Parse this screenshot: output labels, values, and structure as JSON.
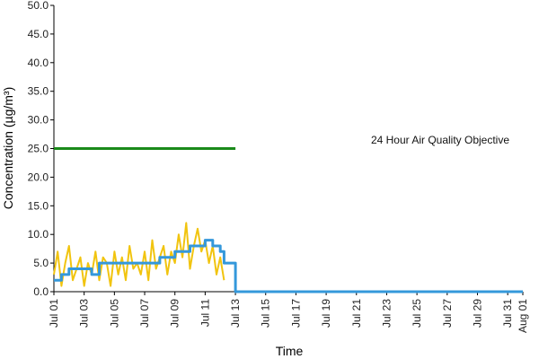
{
  "chart_data": {
    "type": "line",
    "title": "",
    "xlabel": "Time",
    "ylabel": "Concentration (µg/m³)",
    "annotation": "24 Hour Air Quality Objective",
    "ylim": [
      0,
      50
    ],
    "xlim": [
      "2012-07-01",
      "2012-08-01"
    ],
    "y_ticks": [
      "0.0",
      "5.0",
      "10.0",
      "15.0",
      "20.0",
      "25.0",
      "30.0",
      "35.0",
      "40.0",
      "45.0",
      "50.0"
    ],
    "x_ticks": [
      "Jul 01",
      "Jul 03",
      "Jul 05",
      "Jul 07",
      "Jul 09",
      "Jul 11",
      "Jul 13",
      "Jul 15",
      "Jul 17",
      "Jul 19",
      "Jul 21",
      "Jul 23",
      "Jul 25",
      "Jul 27",
      "Jul 29",
      "Jul 31",
      "Aug 01"
    ],
    "x_tick_dates": [
      "2012-07-01",
      "2012-07-03",
      "2012-07-05",
      "2012-07-07",
      "2012-07-09",
      "2012-07-11",
      "2012-07-13",
      "2012-07-15",
      "2012-07-17",
      "2012-07-19",
      "2012-07-21",
      "2012-07-23",
      "2012-07-25",
      "2012-07-27",
      "2012-07-29",
      "2012-07-31",
      "2012-08-01"
    ],
    "grid": false,
    "series": [
      {
        "name": "",
        "color": "#f1c40f",
        "style": "hourly",
        "x": [
          "2012-07-01 00:00",
          "2012-07-01 06:00",
          "2012-07-01 12:00",
          "2012-07-01 18:00",
          "2012-07-02 00:00",
          "2012-07-02 06:00",
          "2012-07-02 12:00",
          "2012-07-02 18:00",
          "2012-07-03 00:00",
          "2012-07-03 06:00",
          "2012-07-03 12:00",
          "2012-07-03 18:00",
          "2012-07-04 00:00",
          "2012-07-04 06:00",
          "2012-07-04 12:00",
          "2012-07-04 18:00",
          "2012-07-05 00:00",
          "2012-07-05 06:00",
          "2012-07-05 12:00",
          "2012-07-05 18:00",
          "2012-07-06 00:00",
          "2012-07-06 06:00",
          "2012-07-06 12:00",
          "2012-07-06 18:00",
          "2012-07-07 00:00",
          "2012-07-07 06:00",
          "2012-07-07 12:00",
          "2012-07-07 18:00",
          "2012-07-08 00:00",
          "2012-07-08 06:00",
          "2012-07-08 12:00",
          "2012-07-08 18:00",
          "2012-07-09 00:00",
          "2012-07-09 06:00",
          "2012-07-09 12:00",
          "2012-07-09 18:00",
          "2012-07-10 00:00",
          "2012-07-10 06:00",
          "2012-07-10 12:00",
          "2012-07-10 18:00",
          "2012-07-11 00:00",
          "2012-07-11 06:00",
          "2012-07-11 12:00",
          "2012-07-11 18:00",
          "2012-07-12 00:00",
          "2012-07-12 06:00"
        ],
        "values": [
          3,
          7,
          1,
          5,
          8,
          2,
          4,
          6,
          1,
          5,
          3,
          7,
          2,
          6,
          5,
          1,
          7,
          3,
          6,
          2,
          8,
          4,
          5,
          3,
          7,
          2,
          9,
          4,
          6,
          8,
          3,
          7,
          5,
          10,
          6,
          12,
          4,
          8,
          11,
          7,
          9,
          5,
          8,
          3,
          6,
          2
        ]
      },
      {
        "name": "",
        "color": "#3498db",
        "style": "step",
        "x": [
          "2012-07-01",
          "2012-07-01 12:00",
          "2012-07-02",
          "2012-07-03",
          "2012-07-03 12:00",
          "2012-07-04",
          "2012-07-05",
          "2012-07-06",
          "2012-07-07",
          "2012-07-08",
          "2012-07-09",
          "2012-07-10",
          "2012-07-11",
          "2012-07-11 12:00",
          "2012-07-12",
          "2012-07-12 06:00",
          "2012-07-13",
          "2012-07-20",
          "2012-08-01"
        ],
        "values": [
          2,
          3,
          4,
          4,
          3,
          5,
          5,
          5,
          5,
          6,
          7,
          8,
          9,
          8,
          7,
          5,
          0,
          0,
          0
        ]
      },
      {
        "name": "",
        "color": "#1a8a1a",
        "style": "objective",
        "x": [
          "2012-07-01",
          "2012-07-13"
        ],
        "values": [
          25,
          25
        ]
      }
    ]
  }
}
